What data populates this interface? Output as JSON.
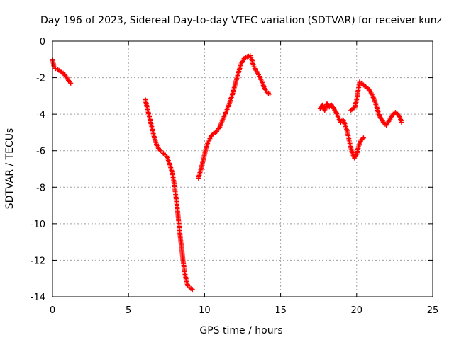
{
  "chart_data": {
    "type": "scatter",
    "title": "Day 196 of 2023, Sidereal Day-to-day VTEC variation (SDTVAR) for receiver kunz",
    "xlabel": "GPS time / hours",
    "ylabel": "SDTVAR / TECUs",
    "xlim": [
      0,
      25
    ],
    "ylim": [
      -14,
      0
    ],
    "xticks": [
      0,
      5,
      10,
      15,
      20,
      25
    ],
    "yticks": [
      0,
      -2,
      -4,
      -6,
      -8,
      -10,
      -12,
      -14
    ],
    "xtick_labels": [
      "0",
      "5",
      "10",
      "15",
      "20",
      "25"
    ],
    "ytick_labels": [
      "0",
      "-2",
      "-4",
      "-6",
      "-8",
      "-10",
      "-12",
      "-14"
    ],
    "grid": true,
    "marker": "+",
    "color": "#ff0000",
    "series": [
      {
        "name": "segment-1",
        "x": [
          0.0,
          0.1,
          0.2,
          0.35,
          0.5,
          0.7,
          0.9,
          1.05,
          1.2
        ],
        "y": [
          -1.0,
          -1.4,
          -1.5,
          -1.55,
          -1.65,
          -1.75,
          -1.95,
          -2.15,
          -2.3
        ]
      },
      {
        "name": "segment-2",
        "x": [
          6.1,
          6.3,
          6.5,
          6.7,
          6.9,
          7.1,
          7.3,
          7.5,
          7.7,
          7.8,
          7.9,
          8.0,
          8.1,
          8.2,
          8.3,
          8.4,
          8.5,
          8.6,
          8.7,
          8.8,
          8.9,
          9.0,
          9.2
        ],
        "y": [
          -3.2,
          -3.9,
          -4.6,
          -5.3,
          -5.8,
          -6.0,
          -6.15,
          -6.3,
          -6.7,
          -7.0,
          -7.3,
          -7.8,
          -8.4,
          -9.1,
          -9.9,
          -10.7,
          -11.4,
          -12.1,
          -12.7,
          -13.1,
          -13.4,
          -13.5,
          -13.6
        ]
      },
      {
        "name": "segment-3",
        "x": [
          9.6,
          9.8,
          10.0,
          10.2,
          10.4,
          10.6,
          10.8,
          11.0,
          11.2,
          11.4,
          11.6,
          11.8,
          12.0,
          12.2,
          12.4,
          12.6,
          12.8,
          13.0,
          13.1,
          13.2,
          13.3,
          13.5,
          13.7,
          13.9,
          14.1,
          14.3
        ],
        "y": [
          -7.5,
          -6.9,
          -6.2,
          -5.6,
          -5.25,
          -5.05,
          -4.95,
          -4.7,
          -4.3,
          -3.9,
          -3.5,
          -3.0,
          -2.4,
          -1.8,
          -1.25,
          -0.95,
          -0.85,
          -0.8,
          -1.0,
          -1.3,
          -1.5,
          -1.75,
          -2.1,
          -2.5,
          -2.8,
          -2.9
        ]
      },
      {
        "name": "segment-4",
        "x": [
          17.6,
          17.75,
          17.9,
          18.05,
          18.2,
          18.35,
          18.5,
          18.65,
          18.8,
          18.95,
          19.1,
          19.25,
          19.4,
          19.55,
          19.7,
          19.85,
          20.0,
          20.15,
          20.3,
          20.45
        ],
        "y": [
          -3.7,
          -3.5,
          -3.8,
          -3.4,
          -3.6,
          -3.5,
          -3.7,
          -3.9,
          -4.2,
          -4.45,
          -4.3,
          -4.6,
          -5.0,
          -5.6,
          -6.1,
          -6.4,
          -6.2,
          -5.7,
          -5.4,
          -5.3
        ]
      },
      {
        "name": "segment-5",
        "x": [
          19.6,
          19.75,
          19.9,
          20.0,
          20.1,
          20.2,
          20.3,
          20.45,
          20.6,
          20.75,
          20.9,
          21.05,
          21.2,
          21.35,
          21.5,
          21.65,
          21.8,
          21.95,
          22.1,
          22.25,
          22.4,
          22.55,
          22.7,
          22.85,
          22.95
        ],
        "y": [
          -3.8,
          -3.7,
          -3.6,
          -3.2,
          -2.7,
          -2.2,
          -2.3,
          -2.4,
          -2.5,
          -2.6,
          -2.75,
          -3.0,
          -3.3,
          -3.7,
          -4.1,
          -4.3,
          -4.5,
          -4.6,
          -4.4,
          -4.2,
          -4.0,
          -3.9,
          -4.0,
          -4.2,
          -4.45
        ]
      }
    ]
  }
}
